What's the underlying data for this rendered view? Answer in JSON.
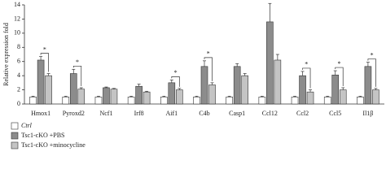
{
  "chart_data": {
    "type": "bar",
    "y_label": "Relative expression fold",
    "categories": [
      "Hmox1",
      "Pyroxd2",
      "Ncf1",
      "Irf8",
      "Aif1",
      "C4b",
      "Casp1",
      "Ccl12",
      "Ccl2",
      "Ccl5",
      "Il1β"
    ],
    "series": [
      {
        "name": "Ctrl",
        "color": "#ffffff",
        "values": [
          1,
          1,
          1,
          1,
          1,
          1,
          1,
          1,
          1,
          1,
          1
        ],
        "errors": [
          0.1,
          0.1,
          0.1,
          0.1,
          0.1,
          0.1,
          0.1,
          0.1,
          0.1,
          0.1,
          0.1
        ]
      },
      {
        "name": "Tsc1-cKO +PBS",
        "color": "#8c8c8c",
        "values": [
          6.2,
          4.3,
          2.3,
          2.5,
          3.0,
          5.3,
          5.3,
          11.6,
          4.0,
          4.1,
          5.3
        ],
        "errors": [
          0.5,
          0.6,
          0.1,
          0.3,
          0.4,
          0.8,
          0.4,
          2.6,
          0.6,
          0.6,
          0.6
        ]
      },
      {
        "name": "Tsc1-cKO +minocycline",
        "color": "#c4c4c4",
        "values": [
          4.0,
          2.1,
          2.1,
          1.7,
          2.0,
          2.7,
          4.0,
          6.2,
          1.7,
          2.0,
          2.0
        ],
        "errors": [
          0.3,
          0.2,
          0.1,
          0.1,
          0.2,
          0.3,
          0.3,
          0.8,
          0.3,
          0.3,
          0.2
        ]
      }
    ],
    "significance": [
      "*",
      "*",
      null,
      null,
      "*",
      "*",
      null,
      null,
      "*",
      "*",
      "*"
    ],
    "ylim": [
      0,
      14
    ],
    "yticks": [
      0,
      2,
      4,
      6,
      8,
      10,
      12,
      14
    ]
  }
}
